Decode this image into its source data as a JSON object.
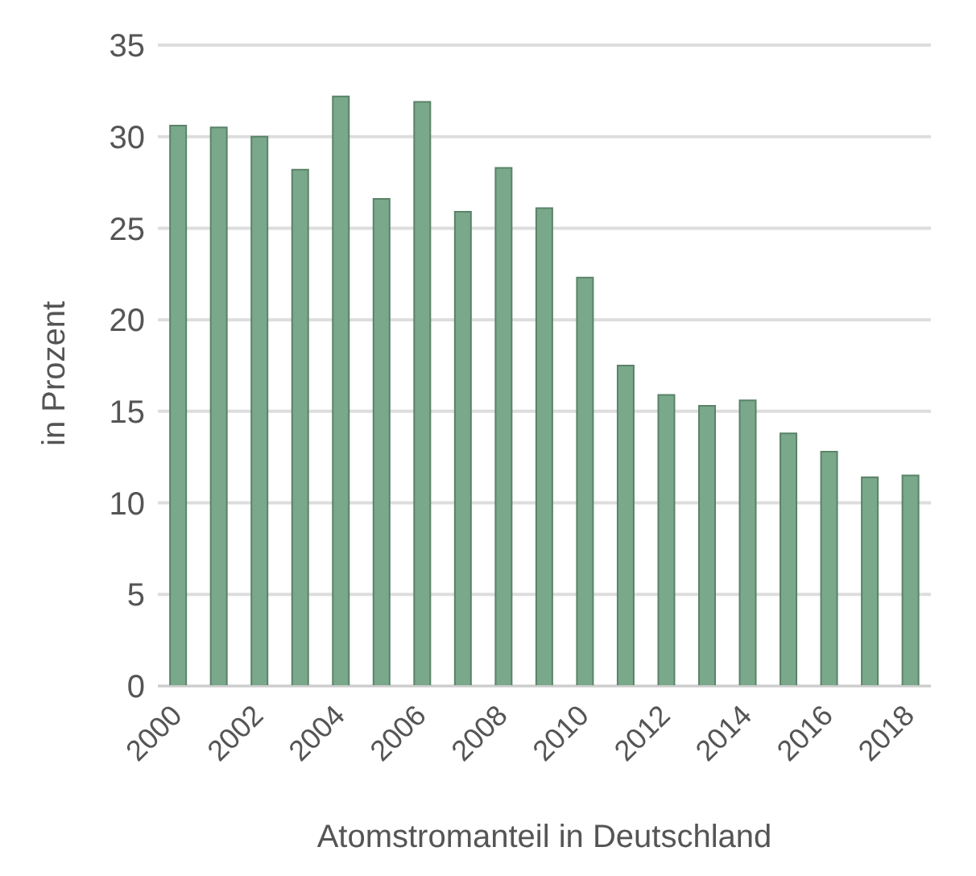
{
  "chart_data": {
    "type": "bar",
    "xlabel": "Atomstromanteil in Deutschland",
    "ylabel": "in Prozent",
    "categories": [
      "2000",
      null,
      "2002",
      null,
      "2004",
      null,
      "2006",
      null,
      "2008",
      null,
      "2010",
      null,
      "2012",
      null,
      "2014",
      null,
      "2016",
      null,
      "2018"
    ],
    "values": [
      30.6,
      30.5,
      30.0,
      28.2,
      32.2,
      26.6,
      31.9,
      25.9,
      28.3,
      26.1,
      22.3,
      17.5,
      15.9,
      15.3,
      15.6,
      13.8,
      12.8,
      11.4,
      11.5
    ],
    "color": "#7aa88a",
    "ylim": [
      0,
      35
    ],
    "yticks": [
      0,
      5,
      10,
      15,
      20,
      25,
      30,
      35
    ],
    "grid": "y"
  }
}
